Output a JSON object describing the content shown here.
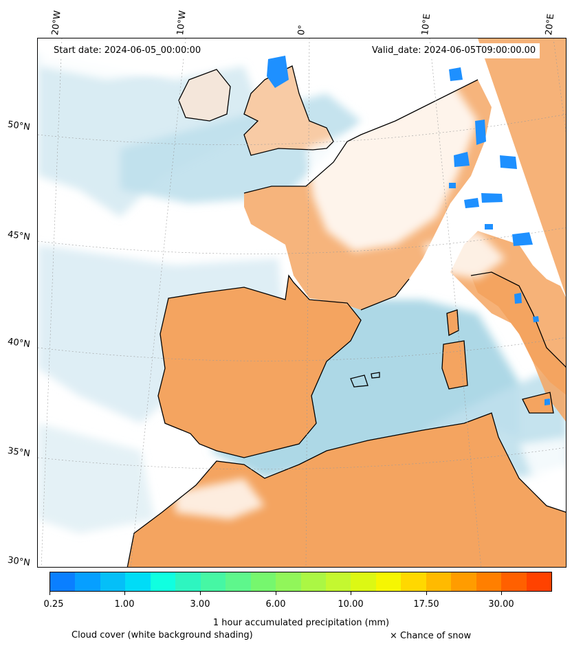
{
  "header": {
    "start_date": "Start date: 2024-06-05_00:00:00",
    "valid_date": "Valid_date: 2024-06-05T09:00:00.00"
  },
  "lon_labels": [
    "20°W",
    "10°W",
    "0°",
    "10°E",
    "20°E"
  ],
  "lat_labels": [
    "50°N",
    "45°N",
    "40°N",
    "35°N",
    "30°N"
  ],
  "map": {
    "extent": {
      "lon_min": -22,
      "lon_max": 21,
      "lat_min": 30,
      "lat_max": 54
    },
    "colors": {
      "ocean_cloud_blue": "#add8e6",
      "land_orange": "#f4a460",
      "land_light_orange": "#f8cba5",
      "cloud_white": "#ffffff",
      "coastline": "#000000",
      "precip_blue": "#1e90ff"
    }
  },
  "colorbar": {
    "label": "1 hour accumulated precipitation (mm)",
    "tick_labels": [
      "0.25",
      "1.00",
      "3.00",
      "6.00",
      "10.00",
      "17.50",
      "30.00"
    ],
    "colors": [
      "#0a7fff",
      "#069fff",
      "#05bff8",
      "#00dcf7",
      "#10ffe0",
      "#2ef5c0",
      "#46f7a4",
      "#5ef78c",
      "#76f76e",
      "#91f65a",
      "#abf744",
      "#c4f830",
      "#dcf814",
      "#f6f602",
      "#ffd800",
      "#ffba00",
      "#ff9c00",
      "#ff7f00",
      "#ff6000",
      "#ff4200"
    ]
  },
  "legend": {
    "cloud_note": "Cloud cover (white background shading)",
    "snow_note": "× Chance of snow"
  }
}
